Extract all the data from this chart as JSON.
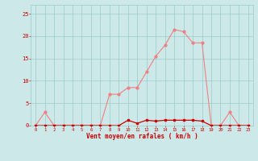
{
  "x": [
    0,
    1,
    2,
    3,
    4,
    5,
    6,
    7,
    8,
    9,
    10,
    11,
    12,
    13,
    14,
    15,
    16,
    17,
    18,
    19,
    20,
    21,
    22,
    23
  ],
  "y_light": [
    0,
    3,
    0,
    0,
    0,
    0,
    0,
    0,
    7,
    7,
    8.5,
    8.5,
    12,
    15.5,
    18,
    21.5,
    21,
    18.5,
    18.5,
    0,
    0,
    3,
    0,
    0
  ],
  "y_dark": [
    0,
    0,
    0,
    0,
    0,
    0,
    0,
    0,
    0,
    0,
    1.2,
    0.5,
    1.2,
    1.0,
    1.2,
    1.2,
    1.2,
    1.2,
    1.0,
    0,
    0,
    0,
    0,
    0
  ],
  "line_color_light": "#f08080",
  "line_color_dark": "#cc0000",
  "bg_color": "#cce8e8",
  "grid_color": "#99cccc",
  "axis_color": "#cc0000",
  "text_color": "#cc0000",
  "xlabel": "Vent moyen/en rafales ( km/h )",
  "ylim": [
    0,
    27
  ],
  "xlim": [
    -0.5,
    23.5
  ],
  "yticks": [
    0,
    5,
    10,
    15,
    20,
    25
  ],
  "xticks": [
    0,
    1,
    2,
    3,
    4,
    5,
    6,
    7,
    8,
    9,
    10,
    11,
    12,
    13,
    14,
    15,
    16,
    17,
    18,
    19,
    20,
    21,
    22,
    23
  ]
}
